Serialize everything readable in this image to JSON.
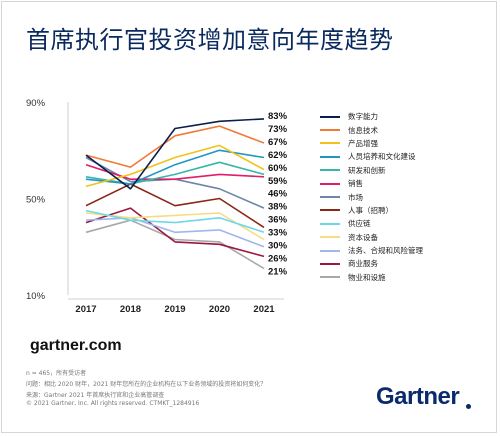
{
  "title": "首席执行官投资增加意向年度趋势",
  "brand_url": "gartner.com",
  "logo": "Gartner",
  "footnotes": [
    "n = 465，所有受访者",
    "问题：相比 2020 财年，2021 财年您所在的企业机构在以下业务领域的投资将如何变化？",
    "来源：Gartner 2021 年首席执行官和企业高管调查",
    "© 2021 Gartner, Inc. All rights reserved. CTMKT_1284916"
  ],
  "chart_data": {
    "type": "line",
    "x": [
      "2017",
      "2018",
      "2019",
      "2020",
      "2021"
    ],
    "y_ticks": [
      "90%",
      "50%",
      "10%"
    ],
    "ylim": [
      10,
      90
    ],
    "series": [
      {
        "name": "数字能力",
        "color": "#0b1f4d",
        "values": [
          68,
          54,
          79,
          82,
          83
        ]
      },
      {
        "name": "信息技术",
        "color": "#f07a36",
        "values": [
          68,
          63,
          76,
          80,
          73
        ]
      },
      {
        "name": "产品增强",
        "color": "#f2c21b",
        "values": [
          55,
          60,
          67,
          72,
          62
        ]
      },
      {
        "name": "人员培养和文化建设",
        "color": "#2196c4",
        "values": [
          58,
          56,
          64,
          70,
          67
        ]
      },
      {
        "name": "研发和创新",
        "color": "#35b6a7",
        "values": [
          59,
          56,
          60,
          65,
          60
        ]
      },
      {
        "name": "销售",
        "color": "#e11d6a",
        "values": [
          64,
          58,
          58,
          60,
          59
        ]
      },
      {
        "name": "市场",
        "color": "#6e86a8",
        "values": [
          67,
          57,
          58,
          54,
          46
        ]
      },
      {
        "name": "人事（招聘）",
        "color": "#8a2716",
        "values": [
          47,
          56,
          47,
          50,
          38
        ]
      },
      {
        "name": "供应链",
        "color": "#6ed7e8",
        "values": [
          45,
          41,
          40,
          42,
          36
        ]
      },
      {
        "name": "资本设备",
        "color": "#f7dc83",
        "values": [
          44,
          42,
          43,
          44,
          33
        ]
      },
      {
        "name": "法务、合规和风险管理",
        "color": "#9fb7ea",
        "values": [
          41,
          42,
          36,
          37,
          30
        ]
      },
      {
        "name": "商业服务",
        "color": "#9c1742",
        "values": [
          40,
          46,
          32,
          31,
          26
        ]
      },
      {
        "name": "物业和设施",
        "color": "#a8a8a8",
        "values": [
          36,
          41,
          33,
          32,
          21
        ]
      }
    ],
    "end_labels": [
      "83%",
      "73%",
      "67%",
      "62%",
      "60%",
      "59%",
      "46%",
      "38%",
      "36%",
      "33%",
      "30%",
      "26%",
      "21%"
    ],
    "grid": false,
    "legend_position": "right"
  }
}
